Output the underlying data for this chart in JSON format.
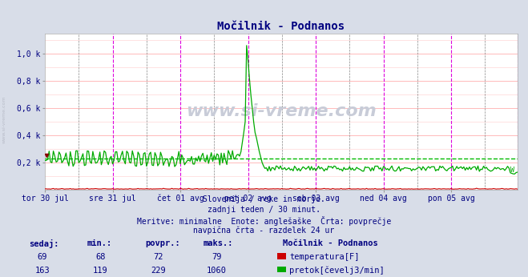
{
  "title": "Močilnik - Podnanos",
  "bg_color": "#d8dde8",
  "plot_bg_color": "#ffffff",
  "grid_color_h": "#ffb0b0",
  "grid_color_v_minor": "#ffcccc",
  "title_color": "#000080",
  "axis_label_color": "#000080",
  "text_color": "#000080",
  "subtitle_lines": [
    "Slovenija / reke in morje.",
    "zadnji teden / 30 minut.",
    "Meritve: minimalne  Enote: anglešaške  Črta: povprečje",
    "navpična črta - razdelek 24 ur"
  ],
  "xlabel_ticks": [
    "tor 30 jul",
    "sre 31 jul",
    "čet 01 avg",
    "pet 02 avg",
    "sob 03 avg",
    "ned 04 avg",
    "pon 05 avg"
  ],
  "n_points": 336,
  "ylim": [
    0,
    1150
  ],
  "yticks": [
    200,
    400,
    600,
    800,
    1000
  ],
  "ytick_labels": [
    "0,2 k",
    "0,4 k",
    "0,6 k",
    "0,8 k",
    "1,0 k"
  ],
  "temp_color": "#cc0000",
  "flow_color": "#00aa00",
  "avg_flow_color": "#00bb00",
  "vline_color_day": "#dd00dd",
  "vline_color_noon": "#555555",
  "watermark": "www.si-vreme.com",
  "watermark_color": "#c8ccd8",
  "table_headers": [
    "sedaj:",
    "min.:",
    "povpr.:",
    "maks.:"
  ],
  "table_rows": [
    {
      "label": "temperatura[F]",
      "color": "#cc0000",
      "values": [
        "69",
        "68",
        "72",
        "79"
      ]
    },
    {
      "label": "pretok[čevelj3/min]",
      "color": "#00aa00",
      "values": [
        "163",
        "119",
        "229",
        "1060"
      ]
    }
  ],
  "station_label": "Močilnik - Podnanos"
}
